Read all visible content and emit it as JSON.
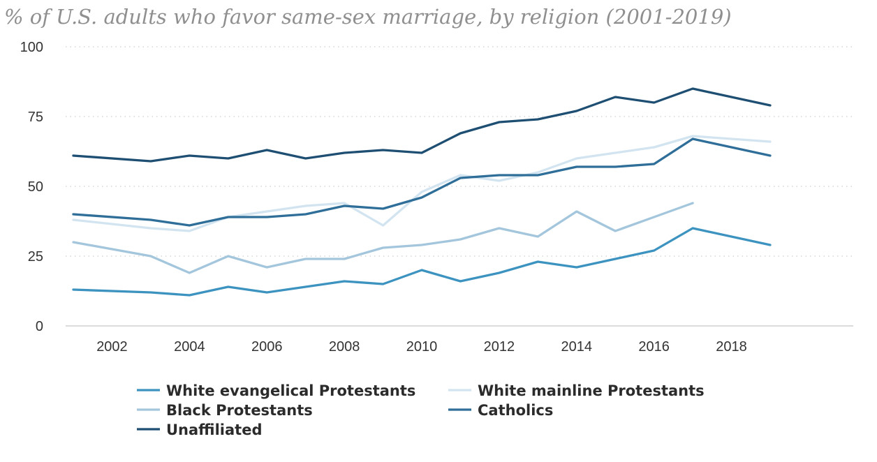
{
  "chart_data": {
    "type": "line",
    "title": "% of U.S. adults who favor same-sex marriage, by religion (2001-2019)",
    "xlabel": "",
    "ylabel": "",
    "xlim": [
      2001,
      2019
    ],
    "ylim": [
      0,
      100
    ],
    "y_ticks": [
      0,
      25,
      50,
      75,
      100
    ],
    "x_ticks": [
      2002,
      2004,
      2006,
      2008,
      2010,
      2012,
      2014,
      2016,
      2018
    ],
    "grid": true,
    "legend_position": "bottom",
    "series": [
      {
        "name": "White evangelical Protestants",
        "color": "#3d93bf",
        "x": [
          2001,
          2003,
          2004,
          2005,
          2006,
          2007,
          2008,
          2009,
          2010,
          2011,
          2012,
          2013,
          2014,
          2015,
          2016,
          2017,
          2019
        ],
        "values": [
          13,
          12,
          11,
          14,
          12,
          14,
          16,
          15,
          20,
          16,
          19,
          23,
          21,
          24,
          27,
          35,
          29
        ]
      },
      {
        "name": "White mainline Protestants",
        "color": "#d3e4f1",
        "x": [
          2001,
          2003,
          2004,
          2005,
          2006,
          2007,
          2008,
          2009,
          2010,
          2011,
          2012,
          2013,
          2014,
          2015,
          2016,
          2017,
          2019
        ],
        "values": [
          38,
          35,
          34,
          39,
          41,
          43,
          44,
          36,
          48,
          54,
          52,
          55,
          60,
          62,
          64,
          68,
          66
        ]
      },
      {
        "name": "Black Protestants",
        "color": "#a3c6dd",
        "x": [
          2001,
          2003,
          2004,
          2005,
          2006,
          2007,
          2008,
          2009,
          2010,
          2011,
          2012,
          2013,
          2014,
          2015,
          2016,
          2017
        ],
        "values": [
          30,
          25,
          19,
          25,
          21,
          24,
          24,
          28,
          29,
          31,
          35,
          32,
          41,
          34,
          39,
          44
        ]
      },
      {
        "name": "Catholics",
        "color": "#2e6e98",
        "x": [
          2001,
          2003,
          2004,
          2005,
          2006,
          2007,
          2008,
          2009,
          2010,
          2011,
          2012,
          2013,
          2014,
          2015,
          2016,
          2017,
          2019
        ],
        "values": [
          40,
          38,
          36,
          39,
          39,
          40,
          43,
          42,
          46,
          53,
          54,
          54,
          57,
          57,
          58,
          67,
          61
        ]
      },
      {
        "name": "Unaffiliated",
        "color": "#1e4f73",
        "x": [
          2001,
          2003,
          2004,
          2005,
          2006,
          2007,
          2008,
          2009,
          2010,
          2011,
          2012,
          2013,
          2014,
          2015,
          2016,
          2017,
          2019
        ],
        "values": [
          61,
          59,
          61,
          60,
          63,
          60,
          62,
          63,
          62,
          69,
          73,
          74,
          77,
          82,
          80,
          85,
          79
        ]
      }
    ]
  }
}
